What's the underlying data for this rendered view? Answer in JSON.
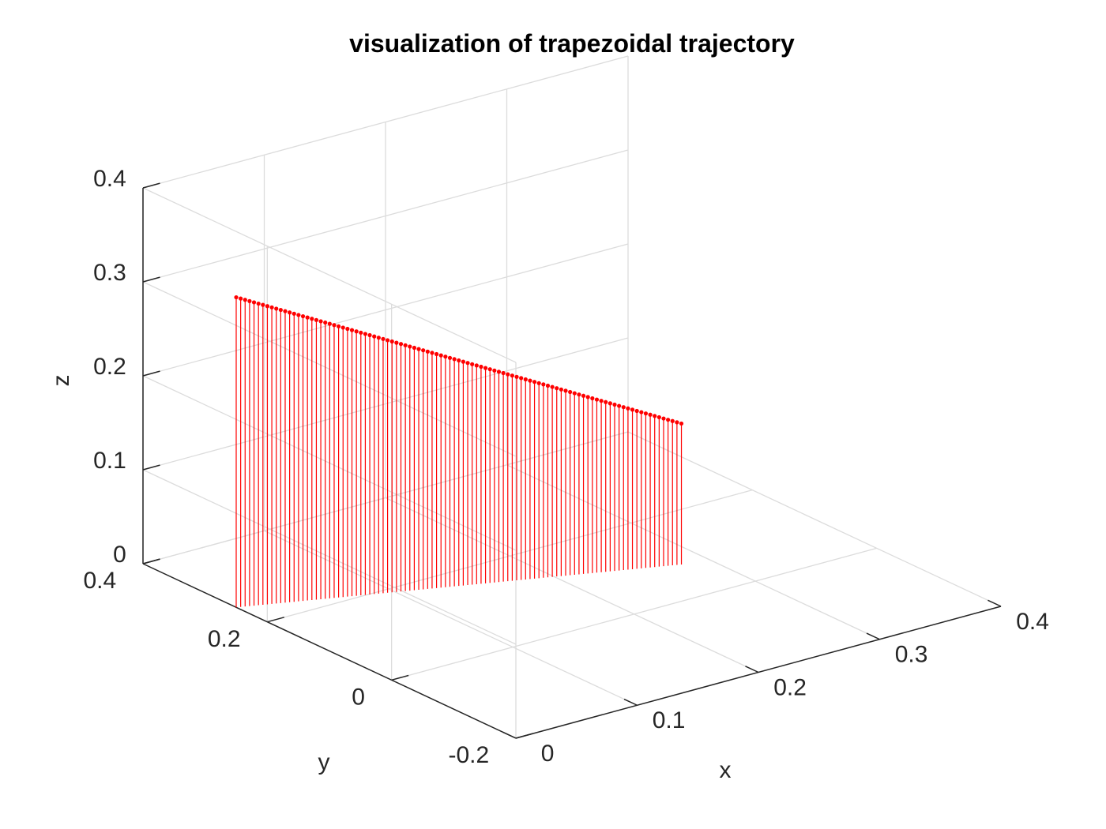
{
  "chart_data": {
    "type": "3d-stem",
    "title": "visualization of trapezoidal trajectory",
    "xlabel": "x",
    "ylabel": "y",
    "zlabel": "z",
    "xlim": [
      0,
      0.4
    ],
    "ylim": [
      -0.2,
      0.4
    ],
    "zlim": [
      0,
      0.4
    ],
    "xticks": [
      "0",
      "0.1",
      "0.2",
      "0.3",
      "0.4"
    ],
    "yticks": [
      "-0.2",
      "0",
      "0.2",
      "0.4"
    ],
    "zticks": [
      "0",
      "0.1",
      "0.2",
      "0.3",
      "0.4"
    ],
    "grid": true,
    "series": [
      {
        "color": "#ff0000",
        "marker": "dot",
        "point_count": 101,
        "start": {
          "x": 0.0,
          "y": 0.25,
          "z": 0.33
        },
        "end": {
          "x": 0.28,
          "y": 0.08,
          "z": 0.15
        }
      }
    ]
  }
}
